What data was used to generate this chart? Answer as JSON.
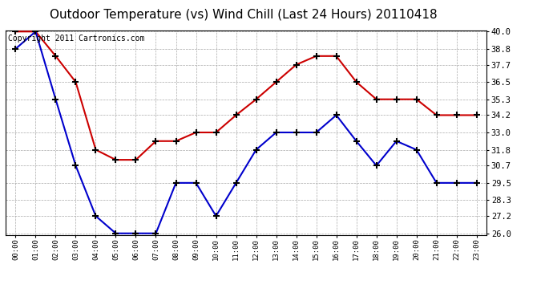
{
  "title": "Outdoor Temperature (vs) Wind Chill (Last 24 Hours) 20110418",
  "copyright_text": "Copyright 2011 Cartronics.com",
  "x_labels": [
    "00:00",
    "01:00",
    "02:00",
    "03:00",
    "04:00",
    "05:00",
    "06:00",
    "07:00",
    "08:00",
    "09:00",
    "10:00",
    "11:00",
    "12:00",
    "13:00",
    "14:00",
    "15:00",
    "16:00",
    "17:00",
    "18:00",
    "19:00",
    "20:00",
    "21:00",
    "22:00",
    "23:00"
  ],
  "temp_red": [
    40.0,
    40.0,
    38.3,
    36.5,
    31.8,
    31.1,
    31.1,
    32.4,
    32.4,
    33.0,
    33.0,
    34.2,
    35.3,
    36.5,
    37.7,
    38.3,
    38.3,
    36.5,
    35.3,
    35.3,
    35.3,
    34.2,
    34.2,
    34.2
  ],
  "wind_chill_blue": [
    38.8,
    40.0,
    35.3,
    30.7,
    27.2,
    26.0,
    26.0,
    26.0,
    29.5,
    29.5,
    27.2,
    29.5,
    31.8,
    33.0,
    33.0,
    33.0,
    34.2,
    32.4,
    30.7,
    32.4,
    31.8,
    29.5,
    29.5,
    29.5
  ],
  "y_min": 26.0,
  "y_max": 40.0,
  "y_ticks": [
    26.0,
    27.2,
    28.3,
    29.5,
    30.7,
    31.8,
    33.0,
    34.2,
    35.3,
    36.5,
    37.7,
    38.8,
    40.0
  ],
  "red_color": "#cc0000",
  "blue_color": "#0000cc",
  "background_color": "#ffffff",
  "plot_bg_color": "#ffffff",
  "grid_color": "#aaaaaa",
  "title_fontsize": 11,
  "copyright_fontsize": 7,
  "marker_size": 6,
  "linewidth": 1.5
}
